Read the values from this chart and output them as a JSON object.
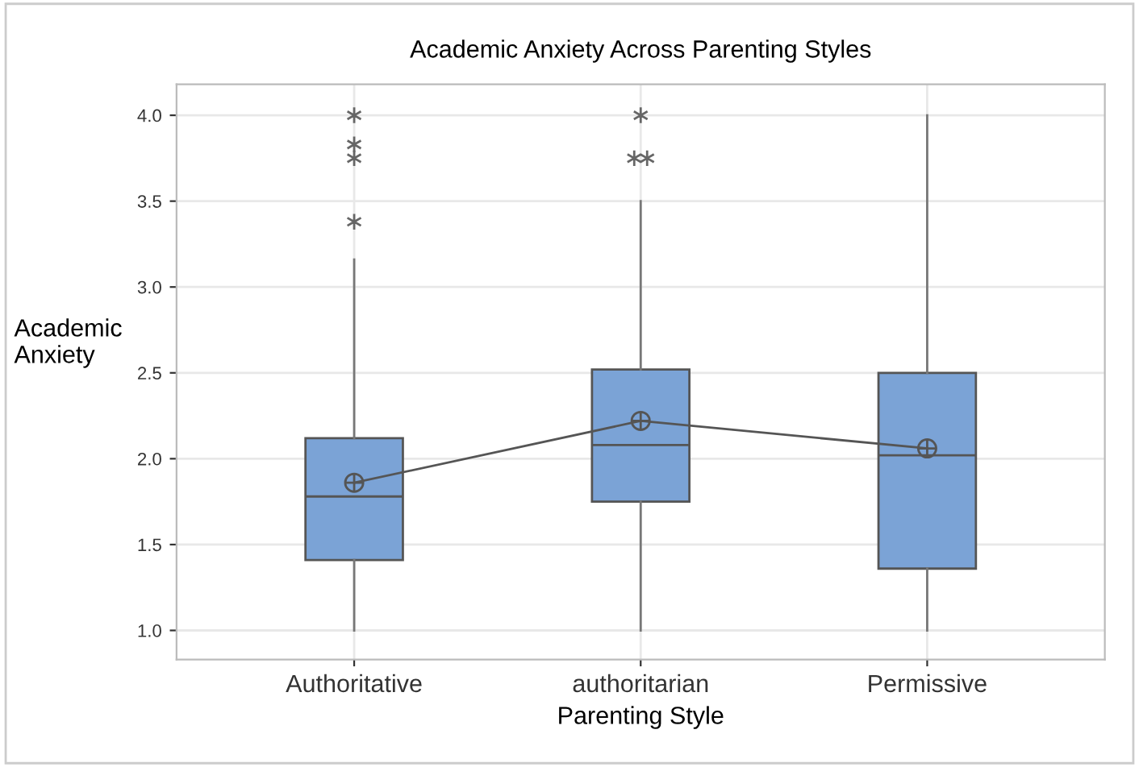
{
  "chart_data": {
    "type": "box",
    "title": "Academic Anxiety Across Parenting Styles",
    "xlabel": "Parenting Style",
    "ylabel": "Academic\nAnxiety",
    "categories": [
      "Authoritative",
      "authoritarian",
      "Permissive"
    ],
    "boxes": [
      {
        "low": 1.0,
        "q1": 1.41,
        "median": 1.78,
        "q3": 2.12,
        "high": 3.16,
        "mean": 1.86,
        "outliers": [
          3.38,
          3.75,
          3.83,
          4.0
        ]
      },
      {
        "low": 1.0,
        "q1": 1.75,
        "median": 2.08,
        "q3": 2.52,
        "high": 3.5,
        "mean": 2.22,
        "outliers": [
          3.75,
          3.75,
          4.0
        ]
      },
      {
        "low": 1.0,
        "q1": 1.36,
        "median": 2.02,
        "q3": 2.5,
        "high": 4.0,
        "mean": 2.06
      }
    ],
    "color": "#7ba3d6",
    "series": [
      {
        "type": "line",
        "color": "#555555",
        "values": [
          1.86,
          2.22,
          2.06
        ]
      }
    ],
    "ylim": [
      0.83,
      4.18
    ],
    "yticks": [
      {
        "value": 1.0,
        "label": "1.0"
      },
      {
        "value": 1.5,
        "label": "1.5"
      },
      {
        "value": 2.0,
        "label": "2.0"
      },
      {
        "value": 2.5,
        "label": "2.5"
      },
      {
        "value": 3.0,
        "label": "3.0"
      },
      {
        "value": 3.5,
        "label": "3.5"
      },
      {
        "value": 4.0,
        "label": "4.0"
      }
    ],
    "grid": true,
    "legend": false
  }
}
